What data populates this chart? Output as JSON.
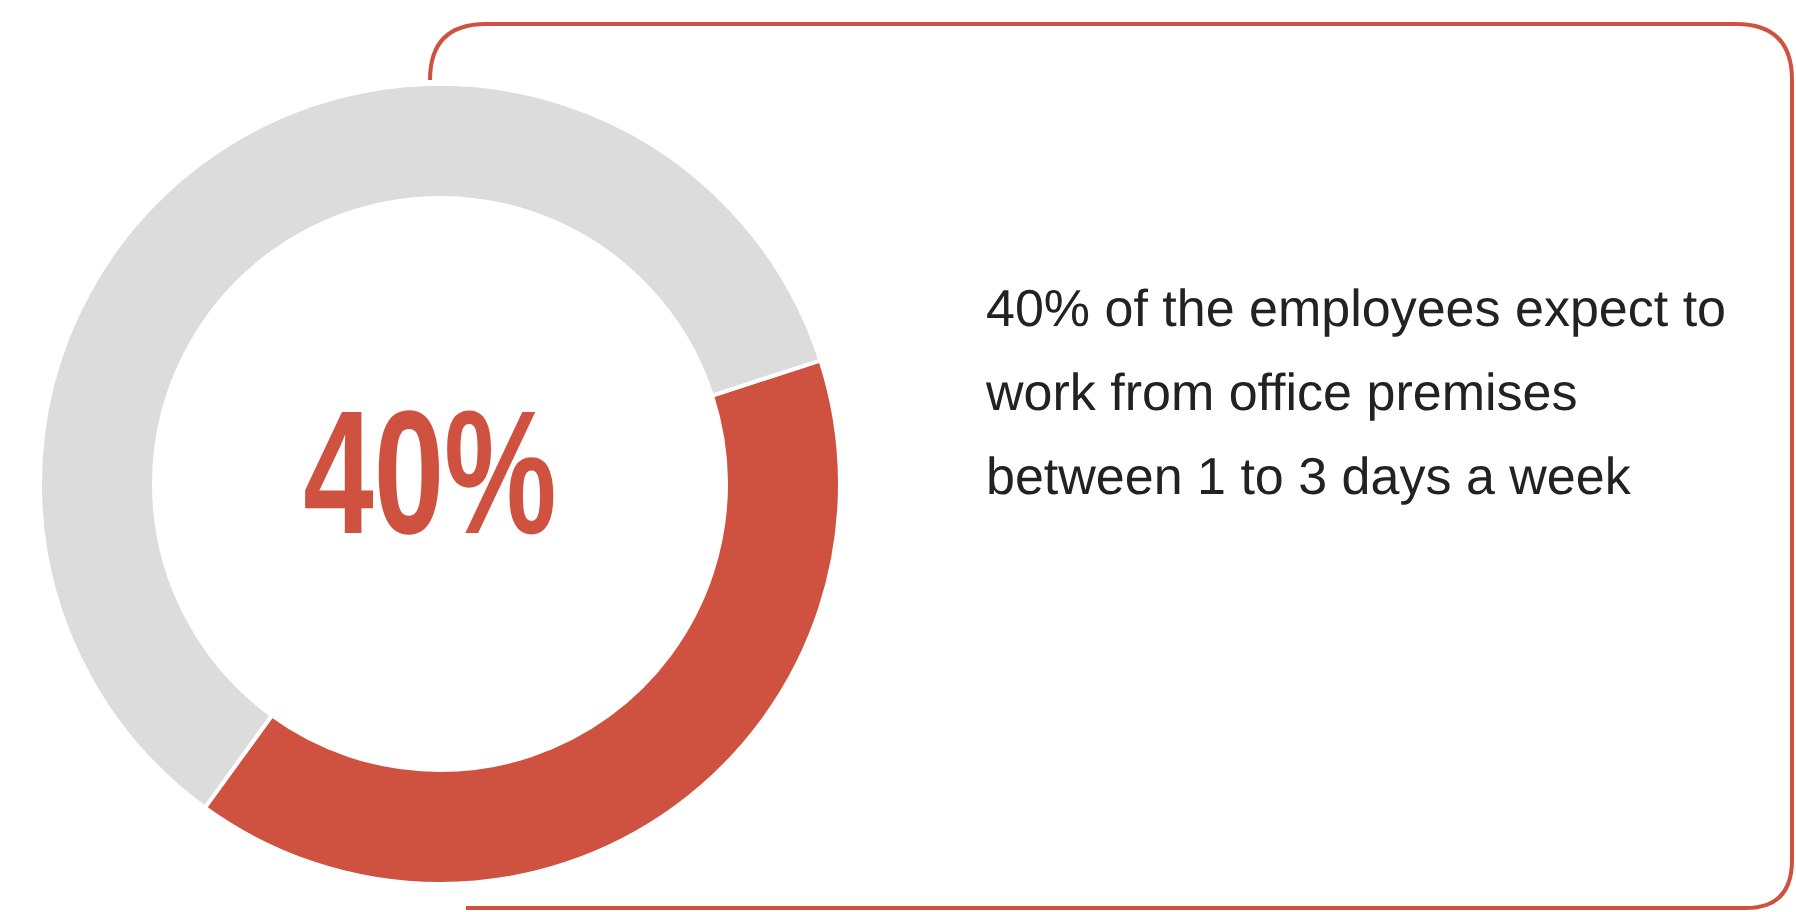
{
  "chart_data": {
    "type": "donut",
    "categories": [
      null,
      null
    ],
    "values": [
      40,
      60
    ],
    "colors": [
      "#cf5240",
      "#dcdcdd"
    ],
    "annotations": [
      "40%",
      "40% of the employees expect to work from office premises between 1 to 3 days a week"
    ],
    "legend": false
  }
}
